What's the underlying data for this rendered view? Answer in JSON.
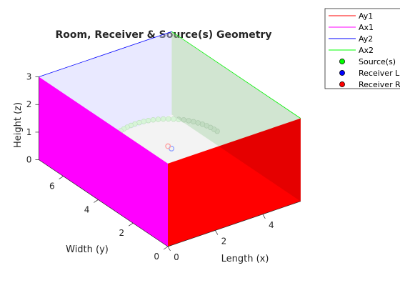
{
  "chart_data": {
    "type": "3d-geometry",
    "title": "Room, Receiver & Source(s) Geometry",
    "xlabel": "Length (x)",
    "ylabel": "Width (y)",
    "zlabel": "Height (z)",
    "room": {
      "length": 5.6,
      "width": 7.4,
      "height": 3
    },
    "xticks": [
      "0",
      "2",
      "4"
    ],
    "yticks": [
      "0",
      "2",
      "4",
      "6"
    ],
    "zticks": [
      "0",
      "1",
      "2",
      "3"
    ],
    "legend_position": "top-right, outside",
    "legend": [
      {
        "label": "Ay1",
        "kind": "line",
        "color": "#ff0000"
      },
      {
        "label": "Ax1",
        "kind": "line",
        "color": "#ff00ff"
      },
      {
        "label": "Ay2",
        "kind": "line",
        "color": "#0000ff"
      },
      {
        "label": "Ax2",
        "kind": "line",
        "color": "#00ff00"
      },
      {
        "label": "Source(s)",
        "kind": "marker",
        "color": "#00ff00"
      },
      {
        "label": "Receiver L",
        "kind": "marker",
        "color": "#0000ff"
      },
      {
        "label": "Receiver R",
        "kind": "marker",
        "color": "#ff0000"
      }
    ],
    "walls": [
      {
        "name": "Ay1",
        "color": "#ff0000",
        "opacity": "opaque"
      },
      {
        "name": "Ax1",
        "color": "#ff00ff",
        "opacity": "opaque"
      },
      {
        "name": "Ay2",
        "color": "#0000ff",
        "opacity": "transparent"
      },
      {
        "name": "Ax2",
        "color": "#00ff00",
        "opacity": "transparent"
      }
    ],
    "receivers": [
      {
        "name": "Receiver L",
        "x": 2.8,
        "y": 3.6,
        "z": 1.2
      },
      {
        "name": "Receiver R",
        "x": 2.8,
        "y": 3.8,
        "z": 1.2
      }
    ],
    "sources": {
      "center": {
        "x": 2.8,
        "y": 3.7
      },
      "radius": 2,
      "z": 1.2,
      "angle_start_deg": 0,
      "angle_end_deg": 180,
      "count": 37
    }
  }
}
